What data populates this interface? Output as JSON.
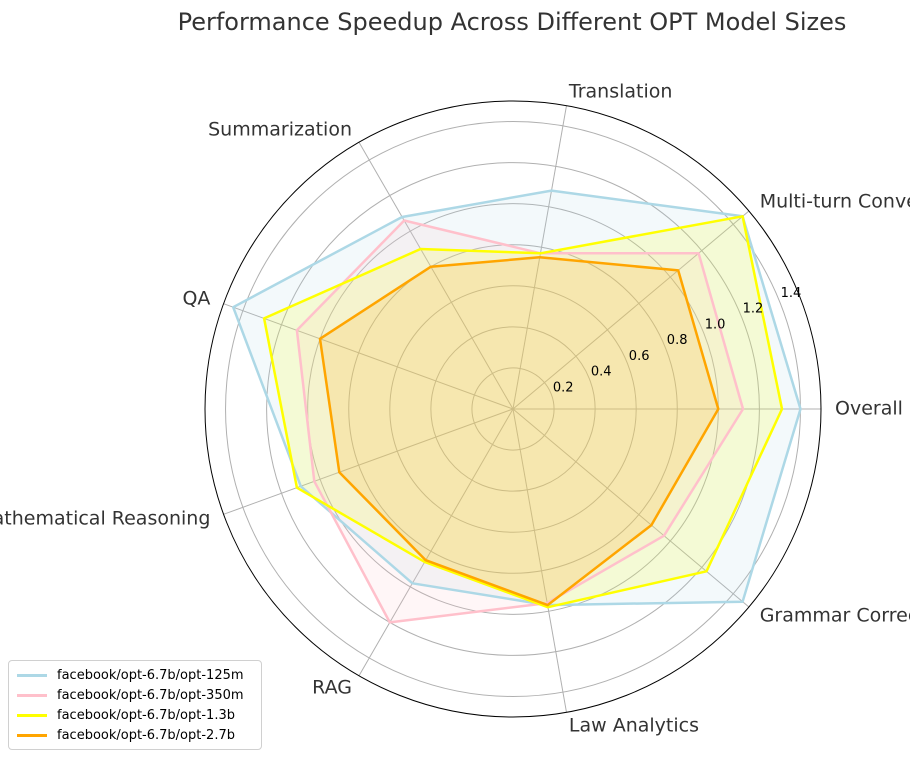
{
  "chart_data": {
    "type": "radar",
    "title": "Performance Speedup Across Different OPT Model Sizes",
    "categories": [
      "Overall",
      "Multi-turn Conversation",
      "Translation",
      "Summarization",
      "QA",
      "Mathematical Reasoning",
      "RAG",
      "Law Analytics",
      "Grammar Correction"
    ],
    "rlim": [
      0,
      1.5
    ],
    "rticks": [
      0.2,
      0.4,
      0.6,
      0.8,
      1.0,
      1.2,
      1.4
    ],
    "rtick_labels": [
      "0.2",
      "0.4",
      "0.6",
      "0.8",
      "1.0",
      "1.2",
      "1.4"
    ],
    "grid": true,
    "legend_position": "lower-left",
    "series": [
      {
        "name": "facebook/opt-6.7b/opt-125m",
        "color": "#ADD8E6",
        "values": [
          1.4,
          1.46,
          1.08,
          1.08,
          1.45,
          1.1,
          0.98,
          0.97,
          1.46
        ]
      },
      {
        "name": "facebook/opt-6.7b/opt-350m",
        "color": "#FFC0CB",
        "values": [
          1.12,
          1.18,
          0.77,
          1.06,
          1.12,
          1.03,
          1.2,
          0.96,
          0.96
        ]
      },
      {
        "name": "facebook/opt-6.7b/opt-1.3b",
        "color": "#FFFF00",
        "values": [
          1.31,
          1.46,
          0.77,
          0.9,
          1.29,
          1.12,
          0.86,
          0.98,
          1.23
        ]
      },
      {
        "name": "facebook/opt-6.7b/opt-2.7b",
        "color": "#FFA500",
        "values": [
          1.0,
          1.05,
          0.75,
          0.8,
          1.0,
          0.9,
          0.85,
          0.97,
          0.88
        ]
      }
    ]
  }
}
